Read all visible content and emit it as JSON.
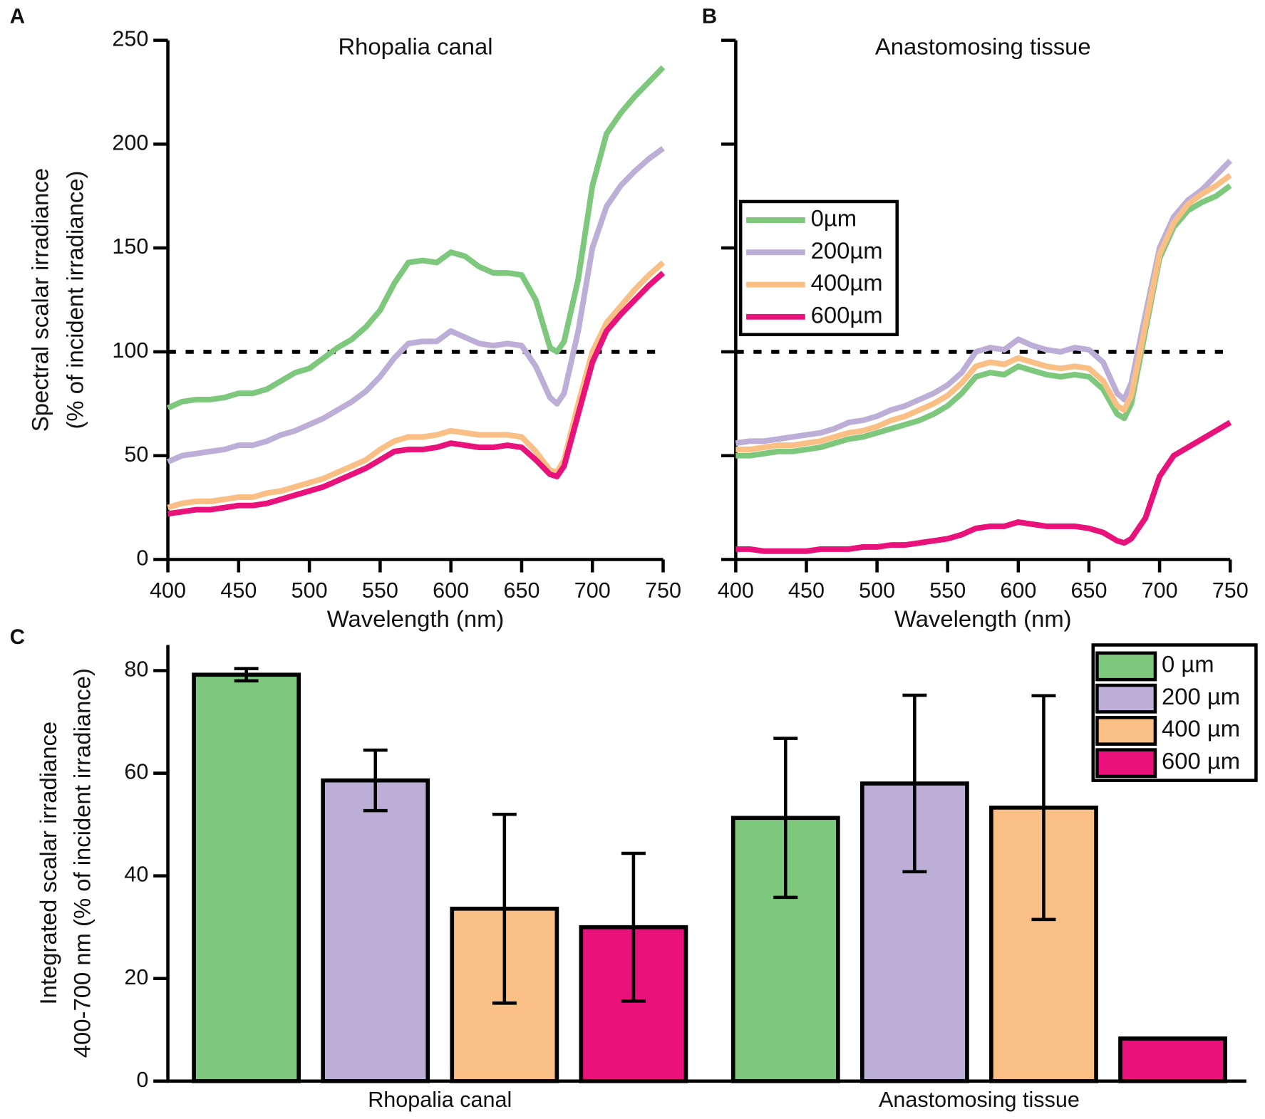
{
  "chart_data": [
    {
      "type": "line",
      "panel": "A",
      "title": "Rhopalia canal",
      "xlabel": "Wavelength (nm)",
      "ylabel": [
        "Spectral scalar irradiance",
        "(% of incident irradiance)"
      ],
      "x": [
        400,
        410,
        420,
        430,
        440,
        450,
        460,
        470,
        480,
        490,
        500,
        510,
        520,
        530,
        540,
        550,
        560,
        570,
        580,
        590,
        600,
        610,
        620,
        630,
        640,
        650,
        660,
        670,
        675,
        680,
        690,
        700,
        710,
        720,
        730,
        740,
        750
      ],
      "series": [
        {
          "color": "#7dc87d",
          "values": [
            73,
            76,
            77,
            77,
            78,
            80,
            80,
            82,
            86,
            90,
            92,
            97,
            102,
            106,
            112,
            120,
            133,
            143,
            144,
            143,
            148,
            146,
            141,
            138,
            138,
            137,
            125,
            102,
            100,
            105,
            135,
            180,
            205,
            215,
            223,
            230,
            237
          ]
        },
        {
          "color": "#bcaed6",
          "values": [
            47,
            50,
            51,
            52,
            53,
            55,
            55,
            57,
            60,
            62,
            65,
            68,
            72,
            76,
            81,
            88,
            97,
            104,
            105,
            105,
            110,
            107,
            104,
            103,
            104,
            103,
            93,
            78,
            75,
            80,
            110,
            150,
            170,
            180,
            187,
            193,
            198
          ]
        },
        {
          "color": "#f9bf85",
          "values": [
            25,
            27,
            28,
            28,
            29,
            30,
            30,
            32,
            33,
            35,
            37,
            39,
            42,
            45,
            48,
            53,
            57,
            59,
            59,
            60,
            62,
            61,
            60,
            60,
            60,
            59,
            52,
            43,
            42,
            48,
            75,
            100,
            114,
            122,
            130,
            137,
            143
          ]
        },
        {
          "color": "#e8127a",
          "values": [
            22,
            23,
            24,
            24,
            25,
            26,
            26,
            27,
            29,
            31,
            33,
            35,
            38,
            41,
            44,
            48,
            52,
            53,
            53,
            54,
            56,
            55,
            54,
            54,
            55,
            54,
            48,
            41,
            40,
            45,
            70,
            95,
            110,
            118,
            125,
            132,
            138
          ]
        }
      ],
      "xlim": [
        400,
        750
      ],
      "xticks": [
        400,
        450,
        500,
        550,
        600,
        650,
        700,
        750
      ],
      "ylim": [
        0,
        250
      ],
      "yticks": [
        0,
        50,
        100,
        150,
        200,
        250
      ],
      "ytick_labels": true,
      "hline": 100
    },
    {
      "type": "line",
      "panel": "B",
      "title": "Anastomosing tissue",
      "xlabel": "Wavelength (nm)",
      "x": [
        400,
        410,
        420,
        430,
        440,
        450,
        460,
        470,
        480,
        490,
        500,
        510,
        520,
        530,
        540,
        550,
        560,
        570,
        580,
        590,
        600,
        610,
        620,
        630,
        640,
        650,
        660,
        670,
        675,
        680,
        690,
        700,
        710,
        720,
        730,
        740,
        750
      ],
      "series": [
        {
          "name": "0µm",
          "color": "#7dc87d",
          "values": [
            50,
            50,
            51,
            52,
            52,
            53,
            54,
            56,
            58,
            59,
            61,
            63,
            65,
            67,
            70,
            74,
            80,
            88,
            90,
            89,
            93,
            91,
            89,
            88,
            89,
            88,
            82,
            70,
            68,
            75,
            110,
            145,
            160,
            168,
            172,
            175,
            180
          ]
        },
        {
          "name": "200µm",
          "color": "#bcaed6",
          "values": [
            56,
            57,
            57,
            58,
            59,
            60,
            61,
            63,
            66,
            67,
            69,
            72,
            74,
            77,
            80,
            84,
            90,
            100,
            102,
            101,
            106,
            103,
            101,
            100,
            102,
            101,
            95,
            80,
            77,
            85,
            118,
            150,
            165,
            173,
            178,
            185,
            192
          ]
        },
        {
          "name": "400µm",
          "color": "#f9bf85",
          "values": [
            53,
            53,
            54,
            55,
            55,
            56,
            57,
            59,
            61,
            62,
            64,
            67,
            69,
            72,
            75,
            79,
            85,
            93,
            95,
            94,
            97,
            95,
            93,
            92,
            93,
            92,
            86,
            74,
            72,
            79,
            113,
            147,
            162,
            171,
            176,
            180,
            185
          ]
        },
        {
          "name": "600µm",
          "color": "#e8127a",
          "values": [
            5,
            5,
            4,
            4,
            4,
            4,
            5,
            5,
            5,
            6,
            6,
            7,
            7,
            8,
            9,
            10,
            12,
            15,
            16,
            16,
            18,
            17,
            16,
            16,
            16,
            15,
            13,
            9,
            8,
            10,
            20,
            40,
            50,
            54,
            58,
            62,
            66
          ]
        }
      ],
      "xlim": [
        400,
        750
      ],
      "xticks": [
        400,
        450,
        500,
        550,
        600,
        650,
        700,
        750
      ],
      "ylim": [
        0,
        250
      ],
      "yticks": [
        0,
        50,
        100,
        150,
        200,
        250
      ],
      "ytick_labels": false,
      "hline": 100,
      "legend": "upper-left"
    },
    {
      "type": "bar",
      "panel": "C",
      "ylabel": [
        "Integrated scalar irradiance",
        "400-700 nm (% of incident irradiance)"
      ],
      "categories": [
        "Rhopalia canal",
        "Anastomosing tissue"
      ],
      "series": [
        {
          "name": "0 µm",
          "color": "#7dc87d",
          "values": [
            79.2,
            51.3
          ],
          "errors": [
            1.2,
            15.5
          ]
        },
        {
          "name": "200 µm",
          "color": "#bcaed6",
          "values": [
            58.6,
            58.0
          ],
          "errors": [
            5.9,
            17.2
          ]
        },
        {
          "name": "400 µm",
          "color": "#f9bf85",
          "values": [
            33.6,
            53.3
          ],
          "errors": [
            18.4,
            21.8
          ]
        },
        {
          "name": "600 µm",
          "color": "#e8127a",
          "values": [
            30.0,
            8.3
          ],
          "errors": [
            14.4,
            null
          ]
        }
      ],
      "ylim": [
        0,
        85
      ],
      "yticks": [
        0,
        20,
        40,
        60,
        80
      ],
      "legend": "upper-right"
    }
  ]
}
